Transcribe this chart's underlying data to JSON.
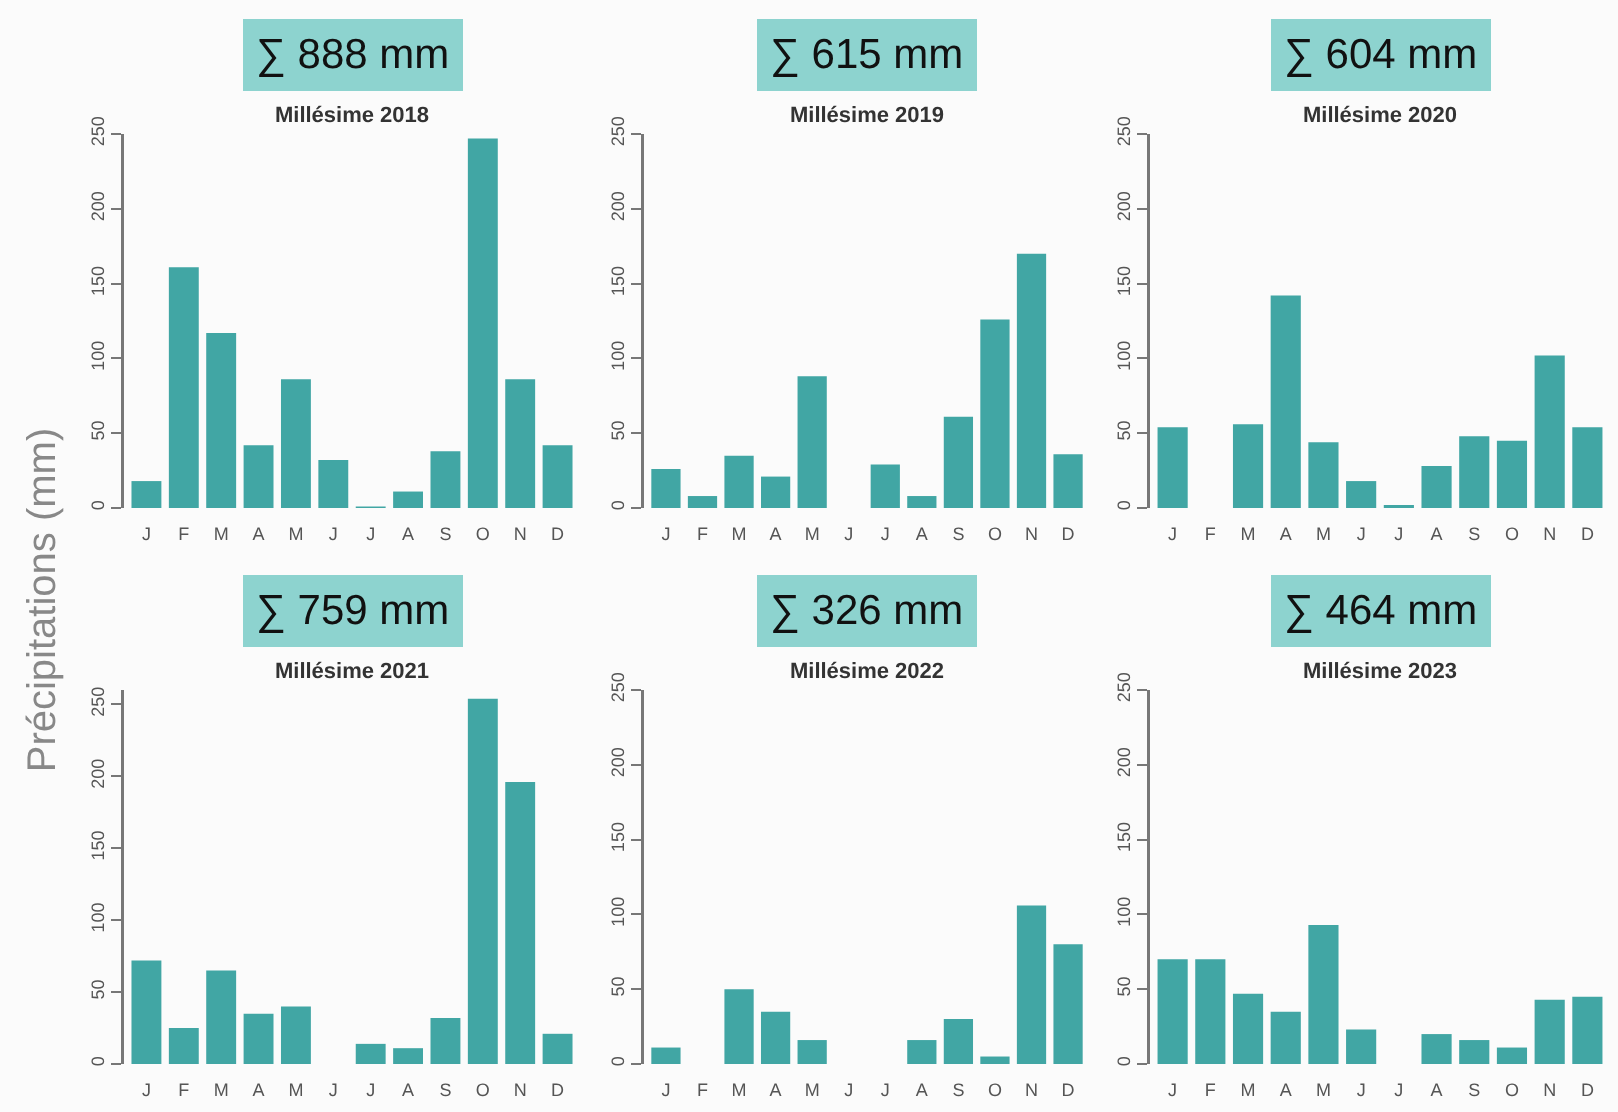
{
  "chart_data": [
    {
      "type": "bar",
      "title": "Millésime 2018",
      "ylabel": "Précipitations (mm)",
      "annotations": [
        "∑ 888 mm"
      ],
      "categories": [
        "J",
        "F",
        "M",
        "A",
        "M",
        "J",
        "J",
        "A",
        "S",
        "O",
        "N",
        "D"
      ],
      "values": [
        18,
        161,
        117,
        42,
        86,
        32,
        1,
        11,
        38,
        247,
        86,
        42
      ],
      "color": "#41a6a4",
      "ylim": [
        0,
        250
      ],
      "yticks": [
        0,
        50,
        100,
        150,
        200,
        250
      ],
      "grid": false
    },
    {
      "type": "bar",
      "title": "Millésime 2019",
      "annotations": [
        "∑ 615 mm"
      ],
      "categories": [
        "J",
        "F",
        "M",
        "A",
        "M",
        "J",
        "J",
        "A",
        "S",
        "O",
        "N",
        "D"
      ],
      "values": [
        26,
        8,
        35,
        21,
        88,
        0,
        29,
        8,
        61,
        126,
        170,
        36
      ],
      "color": "#41a6a4",
      "ylim": [
        0,
        250
      ],
      "yticks": [
        0,
        50,
        100,
        150,
        200,
        250
      ],
      "grid": false
    },
    {
      "type": "bar",
      "title": "Millésime 2020",
      "annotations": [
        "∑ 604 mm"
      ],
      "categories": [
        "J",
        "F",
        "M",
        "A",
        "M",
        "J",
        "J",
        "A",
        "S",
        "O",
        "N",
        "D"
      ],
      "values": [
        54,
        0,
        56,
        142,
        44,
        18,
        2,
        28,
        48,
        45,
        102,
        54
      ],
      "color": "#41a6a4",
      "ylim": [
        0,
        250
      ],
      "yticks": [
        0,
        50,
        100,
        150,
        200,
        250
      ],
      "grid": false
    },
    {
      "type": "bar",
      "title": "Millésime 2021",
      "annotations": [
        "∑ 759 mm"
      ],
      "categories": [
        "J",
        "F",
        "M",
        "A",
        "M",
        "J",
        "J",
        "A",
        "S",
        "O",
        "N",
        "D"
      ],
      "values": [
        72,
        25,
        65,
        35,
        40,
        0,
        14,
        11,
        32,
        254,
        196,
        21
      ],
      "color": "#41a6a4",
      "ylim": [
        0,
        260
      ],
      "yticks": [
        0,
        50,
        100,
        150,
        200,
        250
      ],
      "grid": false
    },
    {
      "type": "bar",
      "title": "Millésime 2022",
      "annotations": [
        "∑ 326 mm"
      ],
      "categories": [
        "J",
        "F",
        "M",
        "A",
        "M",
        "J",
        "J",
        "A",
        "S",
        "O",
        "N",
        "D"
      ],
      "values": [
        11,
        0,
        50,
        35,
        16,
        0,
        0,
        16,
        30,
        5,
        106,
        80
      ],
      "color": "#41a6a4",
      "ylim": [
        0,
        250
      ],
      "yticks": [
        0,
        50,
        100,
        150,
        200,
        250
      ],
      "grid": false
    },
    {
      "type": "bar",
      "title": "Millésime 2023",
      "annotations": [
        "∑ 464 mm"
      ],
      "categories": [
        "J",
        "F",
        "M",
        "A",
        "M",
        "J",
        "J",
        "A",
        "S",
        "O",
        "N",
        "D"
      ],
      "values": [
        70,
        70,
        47,
        35,
        93,
        23,
        0,
        20,
        16,
        11,
        43,
        45
      ],
      "color": "#41a6a4",
      "ylim": [
        0,
        250
      ],
      "yticks": [
        0,
        50,
        100,
        150,
        200,
        250
      ],
      "grid": false
    }
  ]
}
